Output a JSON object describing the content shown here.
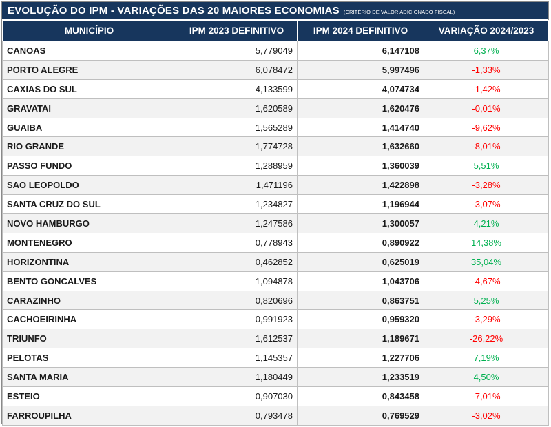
{
  "title": {
    "main": "EVOLUÇÃO DO IPM - VARIAÇÕES DAS 20 MAIORES ECONOMIAS",
    "sub": "(CRITÉRIO DE VALOR ADICIONADO FISCAL)"
  },
  "headers": {
    "municipio": "MUNICÍPIO",
    "ipm2023": "IPM 2023 DEFINITIVO",
    "ipm2024": "IPM 2024 DEFINITIVO",
    "variacao": "VARIAÇÃO 2024/2023"
  },
  "colors": {
    "header_bg": "#17365d",
    "positive": "#00b050",
    "negative": "#ff0000"
  },
  "rows": [
    {
      "municipio": "CANOAS",
      "ipm2023": "5,779049",
      "ipm2024": "6,147108",
      "variacao": "6,37%",
      "trend": "pos"
    },
    {
      "municipio": "PORTO ALEGRE",
      "ipm2023": "6,078472",
      "ipm2024": "5,997496",
      "variacao": "-1,33%",
      "trend": "neg"
    },
    {
      "municipio": "CAXIAS DO SUL",
      "ipm2023": "4,133599",
      "ipm2024": "4,074734",
      "variacao": "-1,42%",
      "trend": "neg"
    },
    {
      "municipio": "GRAVATAI",
      "ipm2023": "1,620589",
      "ipm2024": "1,620476",
      "variacao": "-0,01%",
      "trend": "neg"
    },
    {
      "municipio": "GUAIBA",
      "ipm2023": "1,565289",
      "ipm2024": "1,414740",
      "variacao": "-9,62%",
      "trend": "neg"
    },
    {
      "municipio": "RIO GRANDE",
      "ipm2023": "1,774728",
      "ipm2024": "1,632660",
      "variacao": "-8,01%",
      "trend": "neg"
    },
    {
      "municipio": "PASSO FUNDO",
      "ipm2023": "1,288959",
      "ipm2024": "1,360039",
      "variacao": "5,51%",
      "trend": "pos"
    },
    {
      "municipio": "SAO LEOPOLDO",
      "ipm2023": "1,471196",
      "ipm2024": "1,422898",
      "variacao": "-3,28%",
      "trend": "neg"
    },
    {
      "municipio": "SANTA CRUZ DO SUL",
      "ipm2023": "1,234827",
      "ipm2024": "1,196944",
      "variacao": "-3,07%",
      "trend": "neg"
    },
    {
      "municipio": "NOVO HAMBURGO",
      "ipm2023": "1,247586",
      "ipm2024": "1,300057",
      "variacao": "4,21%",
      "trend": "pos"
    },
    {
      "municipio": "MONTENEGRO",
      "ipm2023": "0,778943",
      "ipm2024": "0,890922",
      "variacao": "14,38%",
      "trend": "pos"
    },
    {
      "municipio": "HORIZONTINA",
      "ipm2023": "0,462852",
      "ipm2024": "0,625019",
      "variacao": "35,04%",
      "trend": "pos"
    },
    {
      "municipio": "BENTO GONCALVES",
      "ipm2023": "1,094878",
      "ipm2024": "1,043706",
      "variacao": "-4,67%",
      "trend": "neg"
    },
    {
      "municipio": "CARAZINHO",
      "ipm2023": "0,820696",
      "ipm2024": "0,863751",
      "variacao": "5,25%",
      "trend": "pos"
    },
    {
      "municipio": "CACHOEIRINHA",
      "ipm2023": "0,991923",
      "ipm2024": "0,959320",
      "variacao": "-3,29%",
      "trend": "neg"
    },
    {
      "municipio": "TRIUNFO",
      "ipm2023": "1,612537",
      "ipm2024": "1,189671",
      "variacao": "-26,22%",
      "trend": "neg"
    },
    {
      "municipio": "PELOTAS",
      "ipm2023": "1,145357",
      "ipm2024": "1,227706",
      "variacao": "7,19%",
      "trend": "pos"
    },
    {
      "municipio": "SANTA MARIA",
      "ipm2023": "1,180449",
      "ipm2024": "1,233519",
      "variacao": "4,50%",
      "trend": "pos"
    },
    {
      "municipio": "ESTEIO",
      "ipm2023": "0,907030",
      "ipm2024": "0,843458",
      "variacao": "-7,01%",
      "trend": "neg"
    },
    {
      "municipio": "FARROUPILHA",
      "ipm2023": "0,793478",
      "ipm2024": "0,769529",
      "variacao": "-3,02%",
      "trend": "neg"
    }
  ]
}
